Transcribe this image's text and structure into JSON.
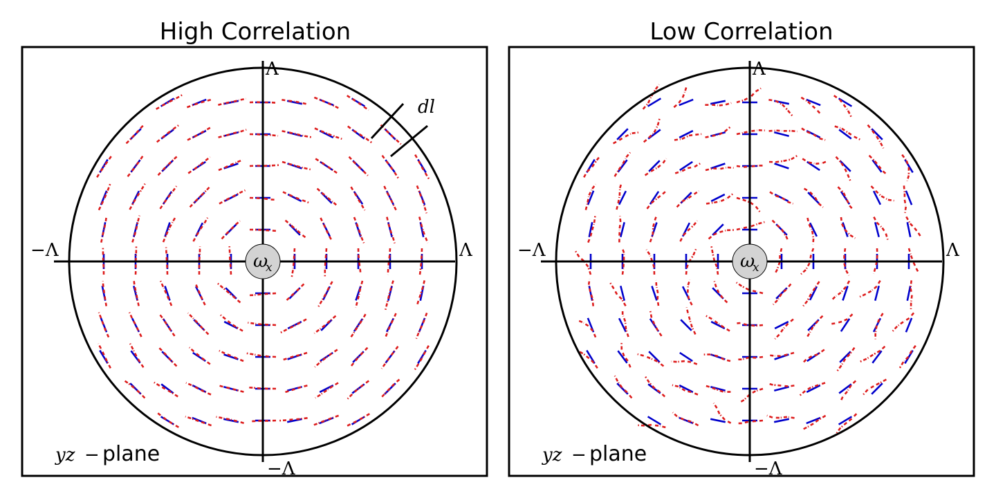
{
  "panels": [
    {
      "title": "High Correlation",
      "axis_labels": {
        "right": "Λ",
        "left": "−Λ",
        "top": "Λ",
        "bottom": "−Λ"
      },
      "center_label": "ω",
      "center_label_sub": "x",
      "plane_label_math": "yz",
      "plane_label_minus": "−",
      "plane_label_text": "plane",
      "segment_label": "dl",
      "noise": 0.07
    },
    {
      "title": "Low Correlation",
      "axis_labels": {
        "right": "Λ",
        "left": "−Λ",
        "top": "Λ",
        "bottom": "−Λ"
      },
      "center_label": "ω",
      "center_label_sub": "x",
      "plane_label_math": "yz",
      "plane_label_minus": "−",
      "plane_label_text": "plane",
      "noise": 0.32
    }
  ],
  "colors": {
    "reference_segments": "#0000cc",
    "perturbed_segments": "#dd1c1c",
    "axes": "#000000",
    "center_disk": "#d3d3d3"
  }
}
